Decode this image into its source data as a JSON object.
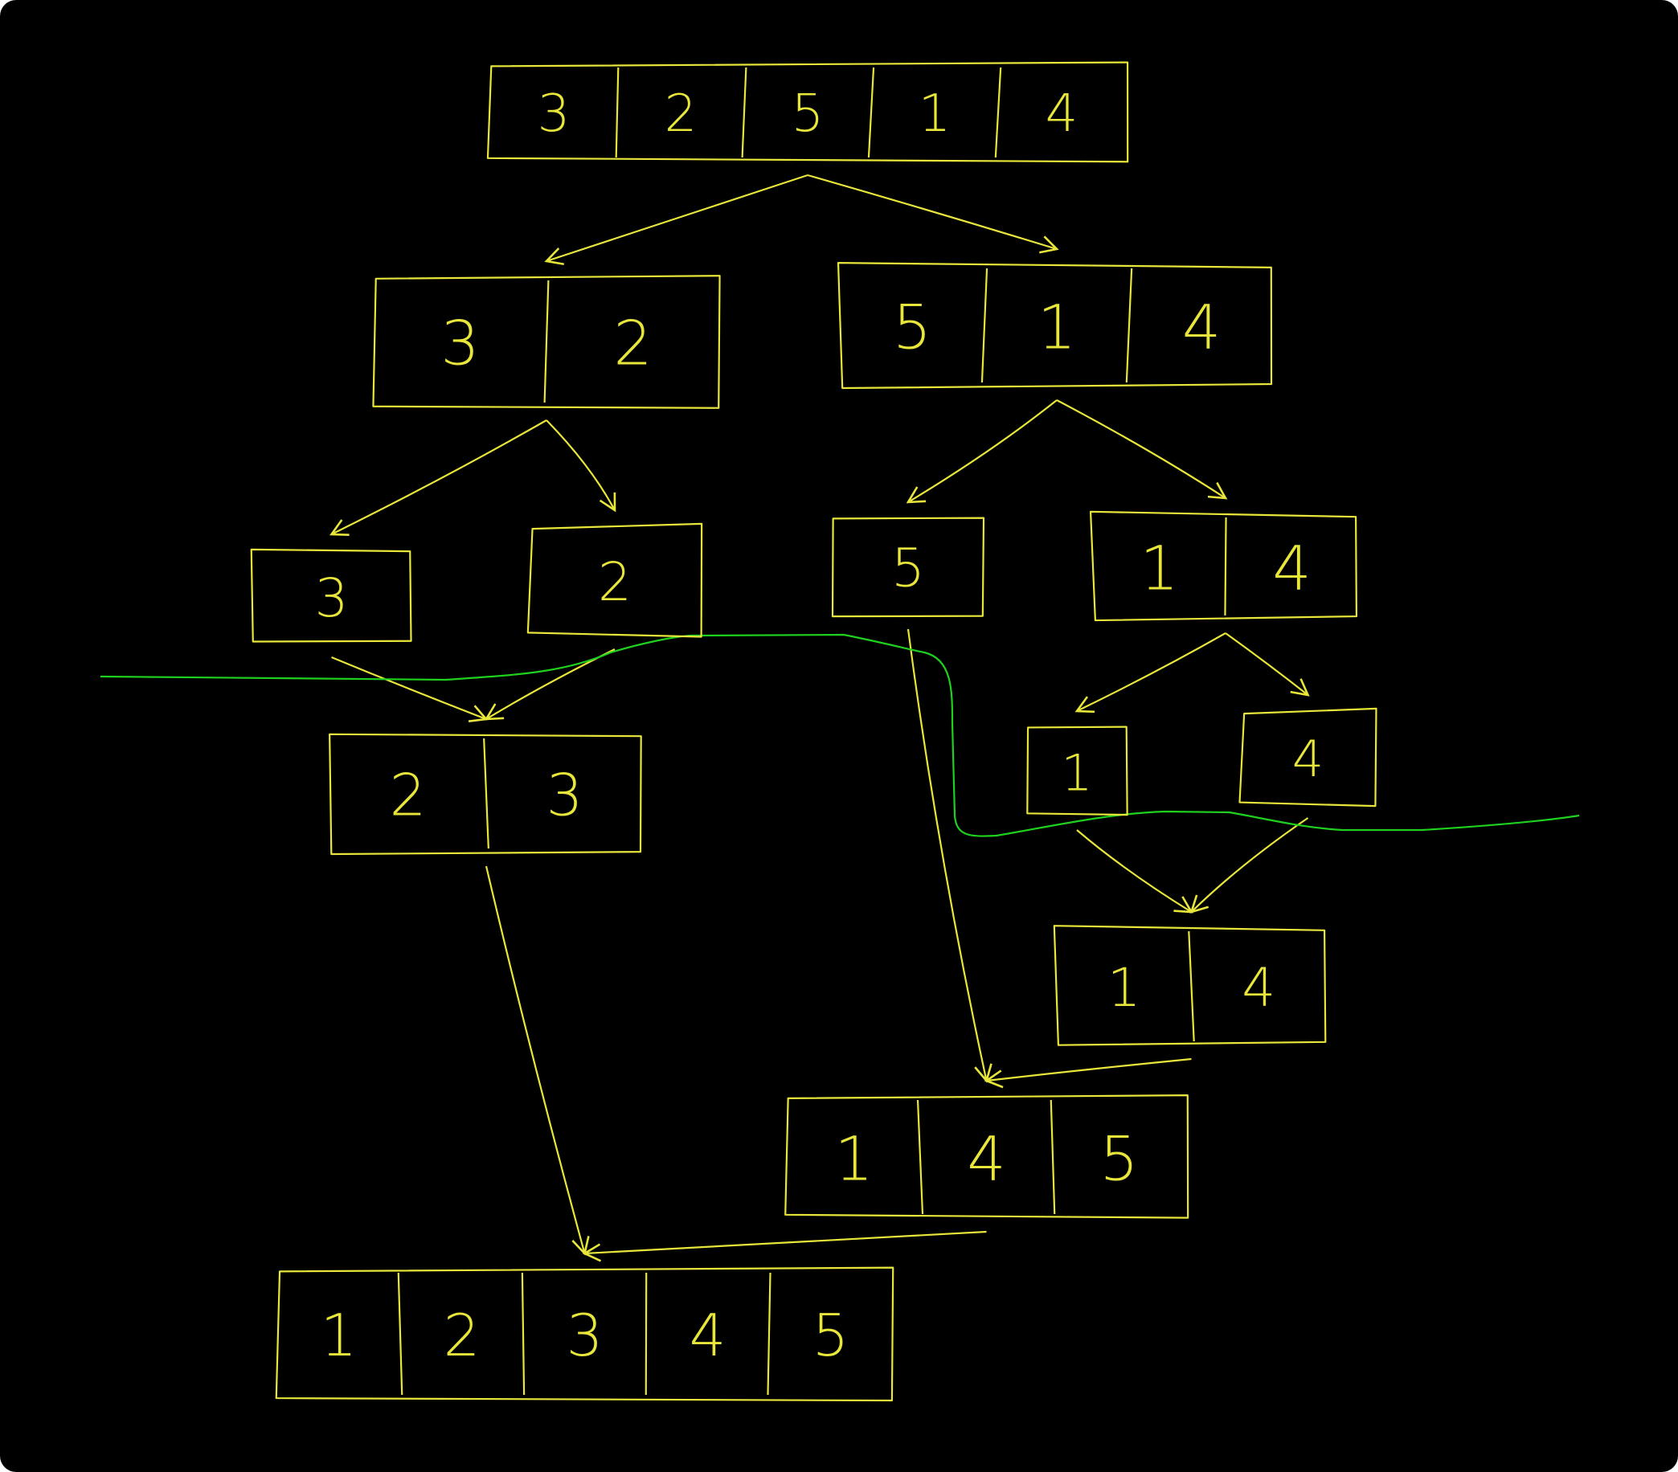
{
  "colors": {
    "background": "#000000",
    "ink": "#e8e63a",
    "split_line": "#1fd11f"
  },
  "nodes": [
    {
      "id": "root",
      "stage": "split",
      "cells": [
        "3",
        "2",
        "5",
        "1",
        "4"
      ]
    },
    {
      "id": "L",
      "stage": "split",
      "cells": [
        "3",
        "2"
      ]
    },
    {
      "id": "R",
      "stage": "split",
      "cells": [
        "5",
        "1",
        "4"
      ]
    },
    {
      "id": "L1",
      "stage": "split",
      "cells": [
        "3"
      ]
    },
    {
      "id": "L2",
      "stage": "split",
      "cells": [
        "2"
      ]
    },
    {
      "id": "R1",
      "stage": "split",
      "cells": [
        "5"
      ]
    },
    {
      "id": "R2",
      "stage": "split",
      "cells": [
        "1",
        "4"
      ]
    },
    {
      "id": "R2a",
      "stage": "split",
      "cells": [
        "1"
      ]
    },
    {
      "id": "R2b",
      "stage": "split",
      "cells": [
        "4"
      ]
    },
    {
      "id": "Lm",
      "stage": "merge",
      "cells": [
        "2",
        "3"
      ]
    },
    {
      "id": "R2m",
      "stage": "merge",
      "cells": [
        "1",
        "4"
      ]
    },
    {
      "id": "Rm",
      "stage": "merge",
      "cells": [
        "1",
        "4",
        "5"
      ]
    },
    {
      "id": "result",
      "stage": "merge",
      "cells": [
        "1",
        "2",
        "3",
        "4",
        "5"
      ]
    }
  ],
  "edges": [
    {
      "from": "root",
      "to": "L"
    },
    {
      "from": "root",
      "to": "R"
    },
    {
      "from": "L",
      "to": "L1"
    },
    {
      "from": "L",
      "to": "L2"
    },
    {
      "from": "R",
      "to": "R1"
    },
    {
      "from": "R",
      "to": "R2"
    },
    {
      "from": "R2",
      "to": "R2a"
    },
    {
      "from": "R2",
      "to": "R2b"
    },
    {
      "from": "L1",
      "to": "Lm"
    },
    {
      "from": "L2",
      "to": "Lm"
    },
    {
      "from": "R2a",
      "to": "R2m"
    },
    {
      "from": "R2b",
      "to": "R2m"
    },
    {
      "from": "R1",
      "to": "Rm"
    },
    {
      "from": "R2m",
      "to": "Rm"
    },
    {
      "from": "Lm",
      "to": "result"
    },
    {
      "from": "Rm",
      "to": "result"
    }
  ]
}
